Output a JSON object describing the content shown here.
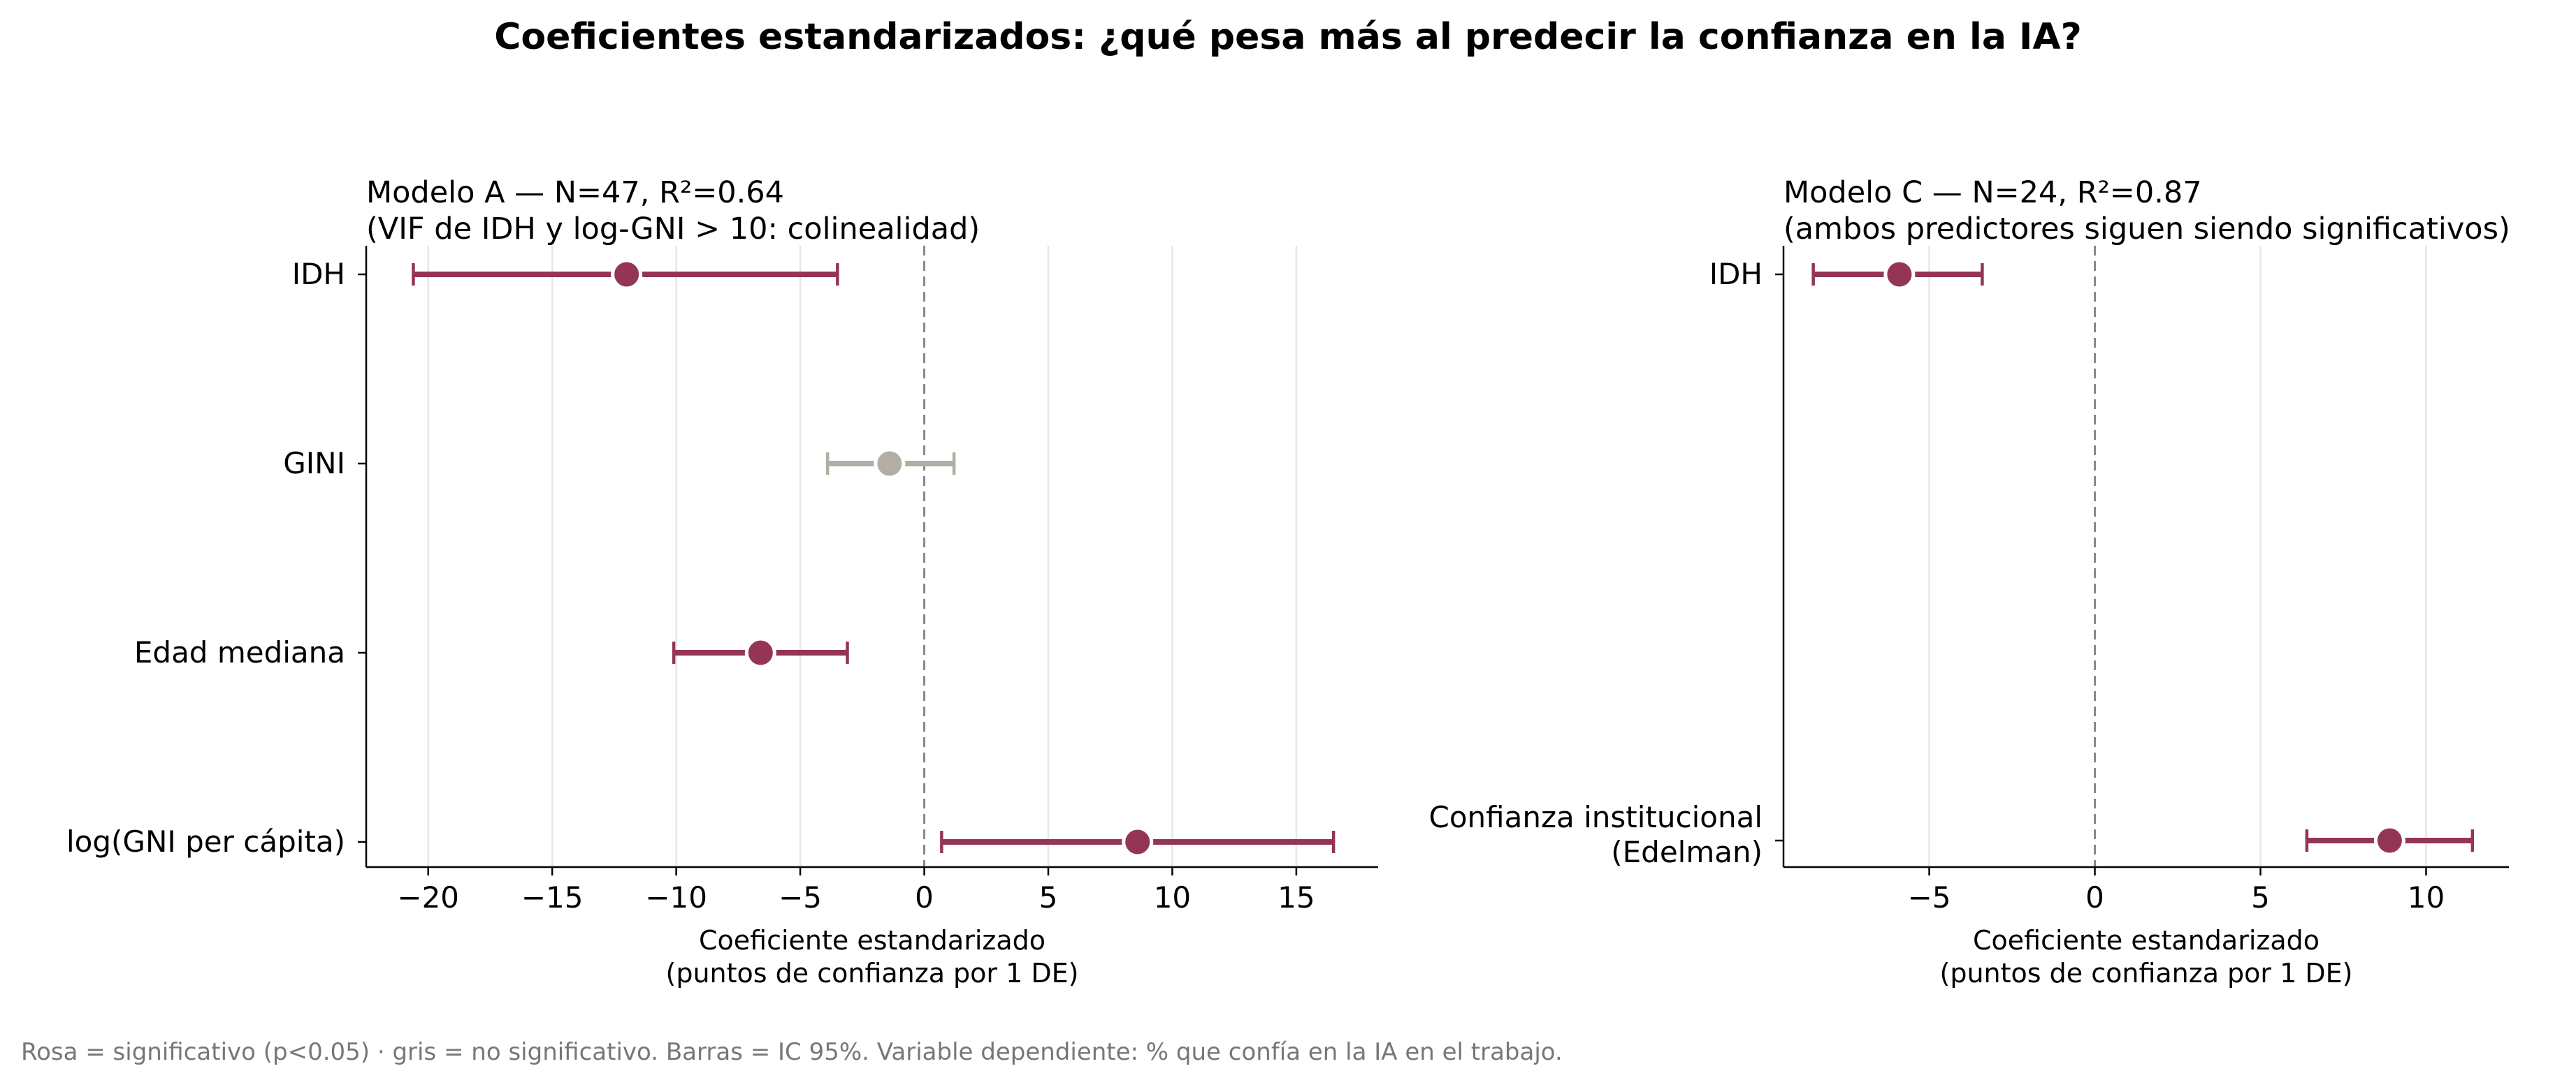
{
  "title": "Coeficientes estandarizados: ¿qué pesa más al predecir la confianza en la IA?",
  "footnote": "Rosa = significativo (p<0.05) · gris = no significativo. Barras = IC 95%. Variable dependiente: % que confía en la IA en el trabajo.",
  "colors": {
    "significant": "#943556",
    "not_significant": "#b2aea5",
    "grid": "#e6e6e6",
    "zero_line": "#888888"
  },
  "chart_data": [
    {
      "type": "scatter",
      "title_lines": [
        "Modelo A — N=47, R²=0.64",
        "(VIF de IDH y log-GNI > 10: colinealidad)"
      ],
      "xlabel_lines": [
        "Coeficiente estandarizado",
        "(puntos de confianza por 1 DE)"
      ],
      "xlim": [
        -22.5,
        18.3
      ],
      "xticks": [
        -20,
        -15,
        -10,
        -5,
        0,
        5,
        10,
        15
      ],
      "xtick_labels": [
        "−20",
        "−15",
        "−10",
        "−5",
        "0",
        "5",
        "10",
        "15"
      ],
      "grid": "vertical",
      "reference_line": 0,
      "points": [
        {
          "label_lines": [
            "IDH"
          ],
          "estimate": -12.0,
          "ci_low": -20.6,
          "ci_high": -3.5,
          "significant": true
        },
        {
          "label_lines": [
            "GINI"
          ],
          "estimate": -1.4,
          "ci_low": -3.9,
          "ci_high": 1.2,
          "significant": false
        },
        {
          "label_lines": [
            "Edad mediana"
          ],
          "estimate": -6.6,
          "ci_low": -10.1,
          "ci_high": -3.1,
          "significant": true
        },
        {
          "label_lines": [
            "log(GNI per cápita)"
          ],
          "estimate": 8.6,
          "ci_low": 0.7,
          "ci_high": 16.5,
          "significant": true
        }
      ]
    },
    {
      "type": "scatter",
      "title_lines": [
        "Modelo C — N=24, R²=0.87",
        "(ambos predictores siguen siendo significativos)"
      ],
      "xlabel_lines": [
        "Coeficiente estandarizado",
        "(puntos de confianza por 1 DE)"
      ],
      "xlim": [
        -9.4,
        12.5
      ],
      "xticks": [
        -5,
        0,
        5,
        10
      ],
      "xtick_labels": [
        "−5",
        "0",
        "5",
        "10"
      ],
      "grid": "vertical",
      "reference_line": 0,
      "points": [
        {
          "label_lines": [
            "IDH"
          ],
          "estimate": -5.9,
          "ci_low": -8.5,
          "ci_high": -3.4,
          "significant": true
        },
        {
          "label_lines": [
            "Confianza institucional",
            "(Edelman)"
          ],
          "estimate": 8.9,
          "ci_low": 6.4,
          "ci_high": 11.4,
          "significant": true
        }
      ]
    }
  ]
}
